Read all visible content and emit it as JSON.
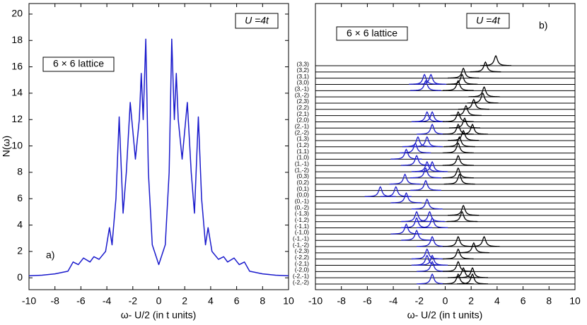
{
  "chart_data": [
    {
      "type": "line",
      "panel_label": "a)",
      "y_label": "N(ω)",
      "x_label": "ω- U/2 (in t units)",
      "param_box": "U =4t",
      "lattice_box": "6 × 6 lattice",
      "color": "#1a1acc",
      "xlim": [
        -10,
        10
      ],
      "ylim": [
        -0.9,
        20.8
      ],
      "xticks": [
        -10,
        -8,
        -6,
        -4,
        -2,
        0,
        2,
        4,
        6,
        8,
        10
      ],
      "yticks": [
        0,
        2,
        4,
        6,
        8,
        10,
        12,
        14,
        16,
        18,
        20
      ],
      "x": [
        -10,
        -9,
        -8,
        -7,
        -6.6,
        -6.2,
        -5.8,
        -5.3,
        -5.0,
        -4.6,
        -4.1,
        -3.8,
        -3.6,
        -3.3,
        -3.05,
        -2.75,
        -2.5,
        -2.2,
        -1.8,
        -1.5,
        -1.35,
        -1.2,
        -1.0,
        -0.8,
        -0.5,
        0,
        0.5,
        0.8,
        1.0,
        1.2,
        1.35,
        1.5,
        1.8,
        2.2,
        2.5,
        2.75,
        3.05,
        3.3,
        3.6,
        3.8,
        4.1,
        4.6,
        5.0,
        5.3,
        5.8,
        6.2,
        6.6,
        7,
        8,
        9,
        10
      ],
      "values": [
        0.15,
        0.2,
        0.3,
        0.5,
        1.2,
        1.0,
        1.5,
        1.2,
        1.6,
        1.4,
        2.0,
        3.8,
        2.5,
        6,
        12.2,
        4.9,
        8,
        13.3,
        9,
        12,
        15.5,
        12,
        18.1,
        8,
        2.5,
        1.0,
        2.5,
        8,
        18.1,
        12,
        15.5,
        12,
        9,
        13.3,
        8,
        4.9,
        12.2,
        6,
        2.5,
        3.8,
        2.0,
        1.4,
        1.6,
        1.2,
        1.5,
        1.0,
        1.2,
        0.5,
        0.3,
        0.2,
        0.15
      ]
    },
    {
      "type": "spectra",
      "panel_label": "b)",
      "x_label": "ω- U/2 (in t units)",
      "param_box": "U =4t",
      "lattice_box": "6 × 6 lattice",
      "lower_color": "#1a1acc",
      "upper_color": "#000000",
      "xlim": [
        -10,
        10
      ],
      "xticks": [
        -10,
        -8,
        -6,
        -4,
        -2,
        0,
        2,
        4,
        6,
        8,
        10
      ],
      "rows": [
        {
          "label": "(3,3)",
          "lower_peaks": [],
          "upper_peaks": [
            3.9
          ]
        },
        {
          "label": "(3,2)",
          "lower_peaks": [],
          "upper_peaks": [
            3.1
          ]
        },
        {
          "label": "(3,1)",
          "lower_peaks": [],
          "upper_peaks": [
            1.4
          ]
        },
        {
          "label": "(3,0)",
          "lower_peaks": [
            -1.6,
            -1.1
          ],
          "upper_peaks": [
            1.3
          ]
        },
        {
          "label": "(3,-1)",
          "lower_peaks": [
            -1.5
          ],
          "upper_peaks": [
            1.0
          ]
        },
        {
          "label": "(3,-2)",
          "lower_peaks": [],
          "upper_peaks": [
            3.0
          ]
        },
        {
          "label": "(2,3)",
          "lower_peaks": [],
          "upper_peaks": [
            2.9
          ]
        },
        {
          "label": "(2,2)",
          "lower_peaks": [],
          "upper_peaks": [
            2.2
          ]
        },
        {
          "label": "(2,1)",
          "lower_peaks": [],
          "upper_peaks": [
            1.6
          ]
        },
        {
          "label": "(2,0)",
          "lower_peaks": [
            -1.4,
            -1.0
          ],
          "upper_peaks": [
            1.0
          ]
        },
        {
          "label": "(2,-1)",
          "lower_peaks": [],
          "upper_peaks": [
            1.5
          ]
        },
        {
          "label": "(2,-2)",
          "lower_peaks": [
            -1.0
          ],
          "upper_peaks": [
            1.0,
            2.1
          ]
        },
        {
          "label": "(1,3)",
          "lower_peaks": [],
          "upper_peaks": [
            1.4
          ]
        },
        {
          "label": "(1,2)",
          "lower_peaks": [
            -2.1,
            -1.4
          ],
          "upper_peaks": [
            1.1
          ]
        },
        {
          "label": "(1,1)",
          "lower_peaks": [
            -2.3
          ],
          "upper_peaks": [
            1.0
          ]
        },
        {
          "label": "(1,0)",
          "lower_peaks": [
            -3.0
          ],
          "upper_peaks": []
        },
        {
          "label": "(1,-1)",
          "lower_peaks": [
            -2.2
          ],
          "upper_peaks": [
            1.0
          ]
        },
        {
          "label": "(1,-2)",
          "lower_peaks": [
            -1.4,
            -1.0
          ],
          "upper_peaks": []
        },
        {
          "label": "(0,3)",
          "lower_peaks": [
            -1.5
          ],
          "upper_peaks": [
            1.0
          ]
        },
        {
          "label": "(0,2)",
          "lower_peaks": [
            -3.1
          ],
          "upper_peaks": [
            1.1
          ]
        },
        {
          "label": "(0,1)",
          "lower_peaks": [
            -1.5
          ],
          "upper_peaks": []
        },
        {
          "label": "(0,0)",
          "lower_peaks": [
            -5.0,
            -3.8
          ],
          "upper_peaks": []
        },
        {
          "label": "(0,-1)",
          "lower_peaks": [
            -3.0
          ],
          "upper_peaks": []
        },
        {
          "label": "(0,-2)",
          "lower_peaks": [
            -1.4
          ],
          "upper_peaks": []
        },
        {
          "label": "(-1,3)",
          "lower_peaks": [],
          "upper_peaks": [
            1.4
          ]
        },
        {
          "label": "(-1,2)",
          "lower_peaks": [
            -2.2,
            -1.2
          ],
          "upper_peaks": [
            1.3
          ]
        },
        {
          "label": "(-1,1)",
          "lower_peaks": [
            -2.2,
            -1.0
          ],
          "upper_peaks": []
        },
        {
          "label": "(-1,0)",
          "lower_peaks": [
            -3.0
          ],
          "upper_peaks": []
        },
        {
          "label": "(-1,-1)",
          "lower_peaks": [
            -2.2
          ],
          "upper_peaks": []
        },
        {
          "label": "(-1,-2)",
          "lower_peaks": [
            -1.0
          ],
          "upper_peaks": [
            1.0,
            3.0
          ]
        },
        {
          "label": "(-2,3)",
          "lower_peaks": [],
          "upper_peaks": [
            2.2
          ]
        },
        {
          "label": "(-2,2)",
          "lower_peaks": [
            -1.4
          ],
          "upper_peaks": [
            1.0
          ]
        },
        {
          "label": "(-2,1)",
          "lower_peaks": [
            -1.4,
            -1.0
          ],
          "upper_peaks": []
        },
        {
          "label": "(-2,0)",
          "lower_peaks": [
            -1.0
          ],
          "upper_peaks": [
            1.0
          ]
        },
        {
          "label": "(-2,-1)",
          "lower_peaks": [],
          "upper_peaks": [
            1.4,
            2.1
          ]
        },
        {
          "label": "(-2,-2)",
          "lower_peaks": [
            -1.0
          ],
          "upper_peaks": [
            1.0,
            2.1
          ]
        }
      ]
    }
  ]
}
